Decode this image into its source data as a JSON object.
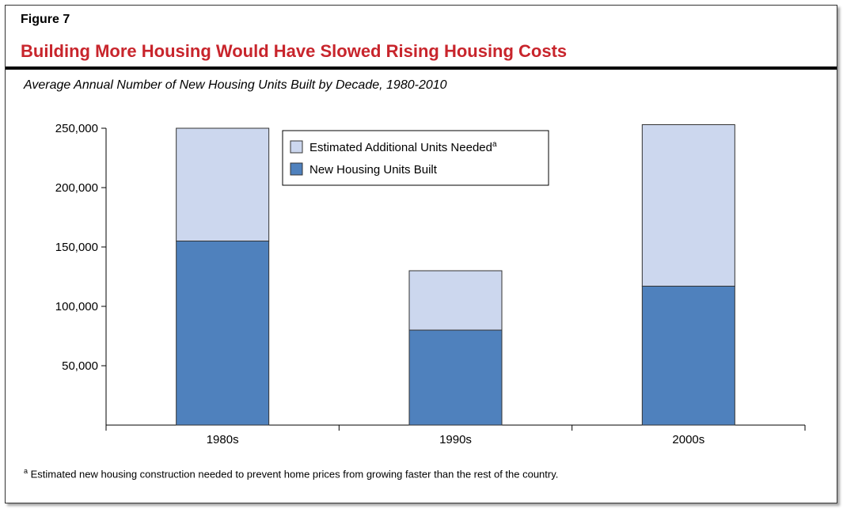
{
  "figure_label": "Figure 7",
  "title": "Building More Housing Would Have Slowed Rising Housing Costs",
  "subtitle": "Average Annual Number of New Housing Units Built by Decade, 1980-2010",
  "footnote": {
    "marker": "a",
    "text": "Estimated new housing construction needed to prevent home prices from growing faster than the rest of the country."
  },
  "colors": {
    "title": "#c8252c",
    "built": "#4f81bd",
    "additional": "#ccd7ee",
    "bar_outline": "#333333"
  },
  "chart_data": {
    "type": "bar",
    "stacked": true,
    "categories": [
      "1980s",
      "1990s",
      "2000s"
    ],
    "series": [
      {
        "name": "New Housing Units Built",
        "values": [
          155000,
          80000,
          117000
        ]
      },
      {
        "name": "Estimated Additional Units Needed",
        "superscript": "a",
        "values": [
          95000,
          50000,
          136000
        ]
      }
    ],
    "ylim": [
      0,
      250000
    ],
    "yticks": [
      50000,
      100000,
      150000,
      200000,
      250000
    ],
    "ytick_labels": [
      "50,000",
      "100,000",
      "150,000",
      "200,000",
      "250,000"
    ],
    "grid": false,
    "legend_position": "top-center"
  }
}
